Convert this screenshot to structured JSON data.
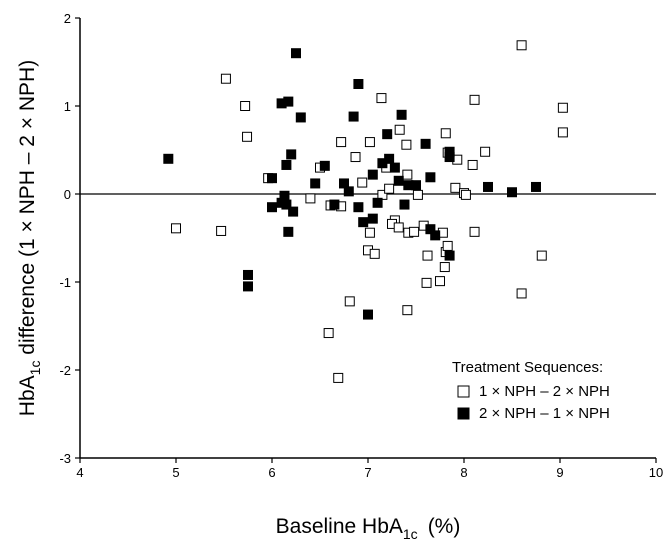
{
  "chart_data": {
    "type": "scatter",
    "xlabel": {
      "text": "Baseline HbA",
      "sub": "1c",
      "rest": "(%)"
    },
    "ylabel": {
      "text": "HbA",
      "sub": "1c",
      "rest": " difference (1 × NPH – 2 × NPH)"
    },
    "xlim": [
      4,
      10
    ],
    "xticks": [
      4,
      5,
      6,
      7,
      8,
      9,
      10
    ],
    "ylim": [
      -3,
      2
    ],
    "yticks": [
      -3,
      -2,
      -1,
      0,
      1,
      2
    ],
    "hline": 0,
    "legend_title": "Treatment Sequences:",
    "legend": "lower right",
    "series": [
      {
        "name": "1 × NPH – 2 × NPH",
        "color": "#000000",
        "marker": "open",
        "x": [
          5.0,
          5.47,
          5.52,
          5.72,
          5.74,
          5.96,
          6.59,
          6.61,
          6.69,
          6.5,
          6.72,
          6.81,
          6.87,
          6.94,
          7.02,
          7.02,
          7.0,
          7.07,
          7.14,
          7.19,
          7.15,
          7.22,
          7.28,
          7.25,
          7.32,
          7.33,
          7.4,
          6.72,
          7.41,
          7.42,
          7.41,
          7.48,
          7.52,
          7.58,
          7.62,
          7.61,
          7.75,
          7.8,
          7.81,
          7.83,
          7.81,
          7.83,
          7.91,
          7.93,
          8.0,
          8.02,
          8.09,
          8.11,
          8.11,
          8.22,
          8.6,
          8.6,
          8.81,
          9.03,
          9.03,
          7.78,
          6.4
        ],
        "y": [
          -0.39,
          -0.42,
          1.31,
          1.0,
          0.65,
          0.18,
          -1.58,
          -0.13,
          -2.09,
          0.3,
          0.59,
          -1.22,
          0.42,
          0.13,
          0.59,
          -0.44,
          -0.64,
          -0.68,
          1.09,
          0.3,
          -0.01,
          0.06,
          -0.3,
          -0.34,
          -0.38,
          0.73,
          0.56,
          -0.14,
          0.22,
          -0.44,
          -1.32,
          -0.43,
          -0.01,
          -0.36,
          -0.7,
          -1.01,
          -0.99,
          -0.83,
          -0.66,
          -0.59,
          0.69,
          0.47,
          0.07,
          0.39,
          0.01,
          -0.01,
          0.33,
          -0.43,
          1.07,
          0.48,
          1.69,
          -1.13,
          -0.7,
          0.98,
          0.7,
          -0.44,
          -0.05
        ]
      },
      {
        "name": "2 × NPH – 1 × NPH",
        "color": "#000000",
        "marker": "filled",
        "x": [
          4.92,
          5.75,
          5.75,
          6.0,
          6.0,
          6.1,
          6.1,
          6.13,
          6.15,
          6.15,
          6.17,
          6.17,
          6.2,
          6.22,
          6.25,
          6.3,
          6.45,
          6.55,
          6.65,
          6.75,
          6.8,
          6.85,
          6.9,
          6.9,
          6.95,
          7.0,
          7.05,
          7.05,
          7.1,
          7.15,
          7.2,
          7.22,
          7.28,
          7.32,
          7.35,
          7.38,
          7.42,
          7.5,
          7.6,
          7.65,
          7.65,
          7.7,
          7.85,
          7.85,
          7.85,
          8.25,
          8.5,
          8.75
        ],
        "y": [
          0.4,
          -0.92,
          -1.05,
          0.18,
          -0.15,
          1.03,
          -0.1,
          -0.02,
          -0.12,
          0.33,
          1.05,
          -0.43,
          0.45,
          -0.2,
          1.6,
          0.87,
          0.12,
          0.32,
          -0.12,
          0.12,
          0.03,
          0.88,
          1.25,
          -0.15,
          -0.32,
          -1.37,
          -0.28,
          0.22,
          -0.1,
          0.35,
          0.68,
          0.4,
          0.3,
          0.15,
          0.9,
          -0.12,
          0.1,
          0.1,
          0.57,
          -0.4,
          0.19,
          -0.47,
          0.48,
          0.42,
          -0.7,
          0.08,
          0.02,
          0.08
        ]
      }
    ]
  }
}
